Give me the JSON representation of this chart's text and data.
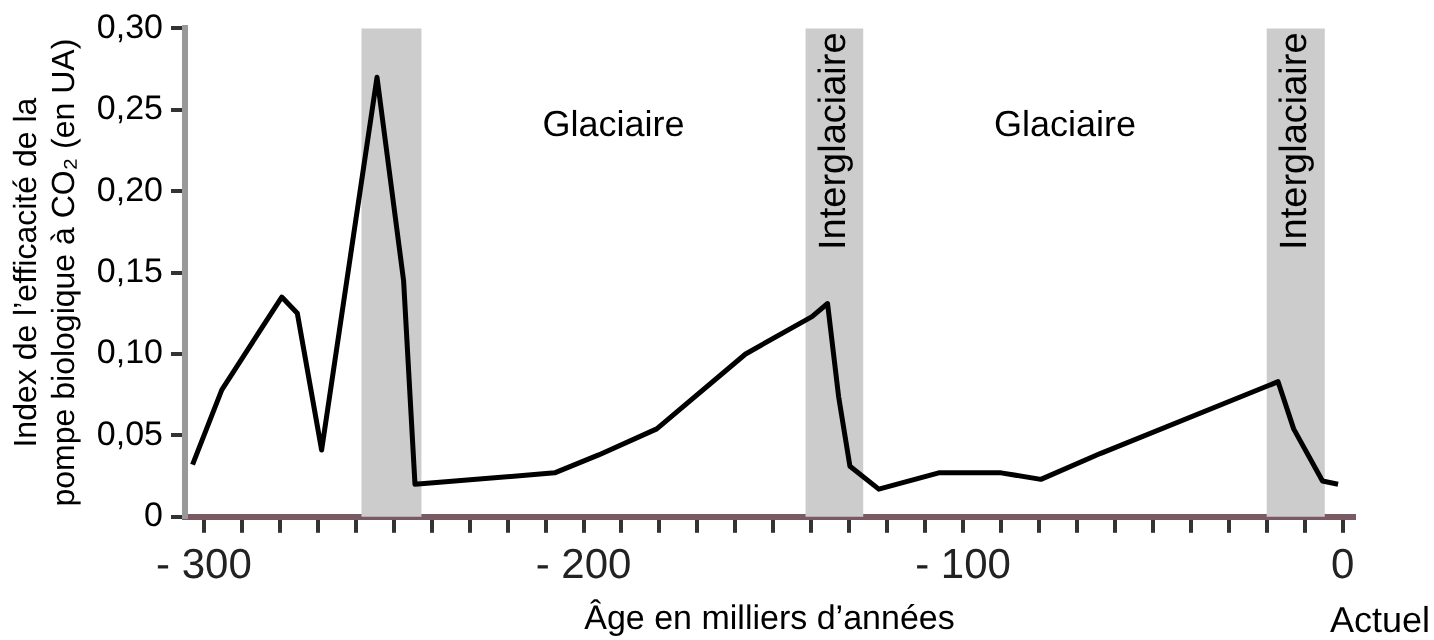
{
  "chart_data": {
    "type": "line",
    "xlabel": "Âge en milliers d’années",
    "ylabel": "Index de l’efficacité de la pompe biologique à CO₂ (en UA)",
    "x": [
      -303,
      -295.3,
      -279.5,
      -275.4,
      -269,
      -254.4,
      -247.4,
      -244.4,
      -207.6,
      -196,
      -180.7,
      -157.3,
      -139.8,
      -135.7,
      -132.8,
      -129.8,
      -122.2,
      -106.4,
      -90,
      -79.5,
      -63.7,
      -17,
      -12.9,
      -5.3,
      -1.2
    ],
    "values": [
      0.032,
      0.078,
      0.135,
      0.125,
      0.041,
      0.27,
      0.145,
      0.02,
      0.027,
      0.038,
      0.054,
      0.1,
      0.123,
      0.131,
      0.074,
      0.031,
      0.017,
      0.027,
      0.027,
      0.023,
      0.039,
      0.083,
      0.054,
      0.022,
      0.02
    ],
    "color": "#000000",
    "marker": "none",
    "line_style": "solid",
    "legend": false,
    "grid": false,
    "xlim": [
      -305,
      3
    ],
    "ylim": [
      0,
      0.3
    ],
    "xticks": [
      {
        "value": -300,
        "label": "- 300"
      },
      {
        "value": -290,
        "label": null
      },
      {
        "value": -280,
        "label": null
      },
      {
        "value": -270,
        "label": null
      },
      {
        "value": -260,
        "label": null
      },
      {
        "value": -250,
        "label": null
      },
      {
        "value": -240,
        "label": null
      },
      {
        "value": -230,
        "label": null
      },
      {
        "value": -220,
        "label": null
      },
      {
        "value": -210,
        "label": null
      },
      {
        "value": -200,
        "label": "- 200"
      },
      {
        "value": -190,
        "label": null
      },
      {
        "value": -180,
        "label": null
      },
      {
        "value": -170,
        "label": null
      },
      {
        "value": -160,
        "label": null
      },
      {
        "value": -150,
        "label": null
      },
      {
        "value": -140,
        "label": null
      },
      {
        "value": -130,
        "label": null
      },
      {
        "value": -120,
        "label": null
      },
      {
        "value": -110,
        "label": null
      },
      {
        "value": -100,
        "label": "- 100"
      },
      {
        "value": -90,
        "label": null
      },
      {
        "value": -80,
        "label": null
      },
      {
        "value": -70,
        "label": null
      },
      {
        "value": -60,
        "label": null
      },
      {
        "value": -50,
        "label": null
      },
      {
        "value": -40,
        "label": null
      },
      {
        "value": -30,
        "label": null
      },
      {
        "value": -20,
        "label": null
      },
      {
        "value": -10,
        "label": null
      },
      0
    ],
    "yticks": [
      0,
      {
        "value": 0.05,
        "label": "0,05"
      },
      {
        "value": 0.1,
        "label": "0,10"
      },
      {
        "value": 0.15,
        "label": "0,15"
      },
      {
        "value": 0.2,
        "label": "0,20"
      },
      {
        "value": 0.25,
        "label": "0,25"
      },
      {
        "value": 0.3,
        "label": "0,30"
      }
    ],
    "bands": [
      {
        "axis": "x",
        "from": -258.5,
        "to": -242.7,
        "color": "#cccccc"
      },
      {
        "axis": "x",
        "from": -141.5,
        "to": -126.3,
        "label": "Interglaciaire",
        "color": "#cccccc"
      },
      {
        "axis": "x",
        "from": -20,
        "to": -4.7,
        "label": "Interglaciaire",
        "color": "#cccccc"
      }
    ],
    "annotations": [
      "Glaciaire",
      "Glaciaire",
      "Actuel"
    ]
  }
}
